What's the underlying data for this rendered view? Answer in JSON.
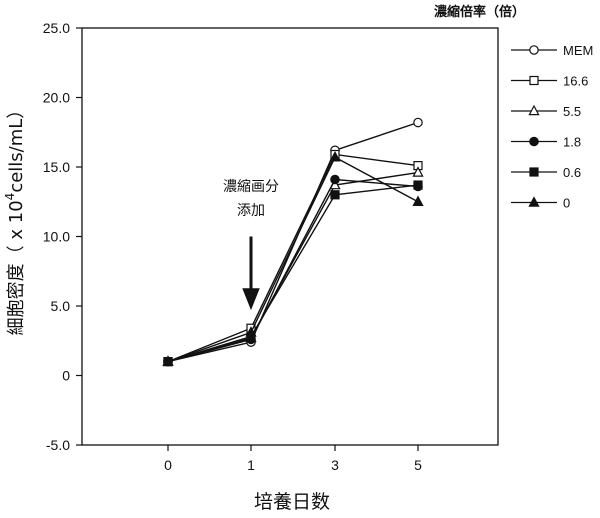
{
  "chart_data": {
    "type": "line",
    "title": "",
    "xlabel": "培養日数",
    "ylabel": "細胞密度（ x 10⁴cells/mL）",
    "ylabel_parts": {
      "prefix": "細胞密度（ x 10",
      "sup": "4",
      "suffix": "cells/mL）"
    },
    "categories": [
      "0",
      "1",
      "3",
      "5"
    ],
    "ylim": [
      -5.0,
      25.0
    ],
    "yticks": [
      "-5.0",
      "0",
      "5.0",
      "10.0",
      "15.0",
      "20.0",
      "25.0"
    ],
    "ytick_values": [
      -5,
      0,
      5,
      10,
      15,
      20,
      25
    ],
    "grid": false,
    "legend": {
      "title": "濃縮倍率（倍）",
      "placement": "top-right outside"
    },
    "series": [
      {
        "name": "MEM",
        "marker": "circle-open",
        "values": [
          1.0,
          2.4,
          16.2,
          18.2
        ]
      },
      {
        "name": "16.6",
        "marker": "square-open",
        "values": [
          1.0,
          3.4,
          15.9,
          15.1
        ]
      },
      {
        "name": "5.5",
        "marker": "triangle-open",
        "values": [
          1.0,
          2.7,
          13.7,
          14.6
        ]
      },
      {
        "name": "1.8",
        "marker": "circle-filled",
        "values": [
          1.0,
          2.6,
          14.1,
          13.6
        ]
      },
      {
        "name": "0.6",
        "marker": "square-filled",
        "values": [
          1.0,
          2.8,
          13.0,
          13.7
        ]
      },
      {
        "name": "0",
        "marker": "triangle-filled",
        "values": [
          1.0,
          3.1,
          15.7,
          12.5
        ]
      }
    ],
    "annotation": {
      "lines": [
        "濃縮画分",
        "添加"
      ],
      "arrow_at_category": "1",
      "arrow_from_value": 10.0,
      "arrow_to_value": 4.8
    }
  }
}
